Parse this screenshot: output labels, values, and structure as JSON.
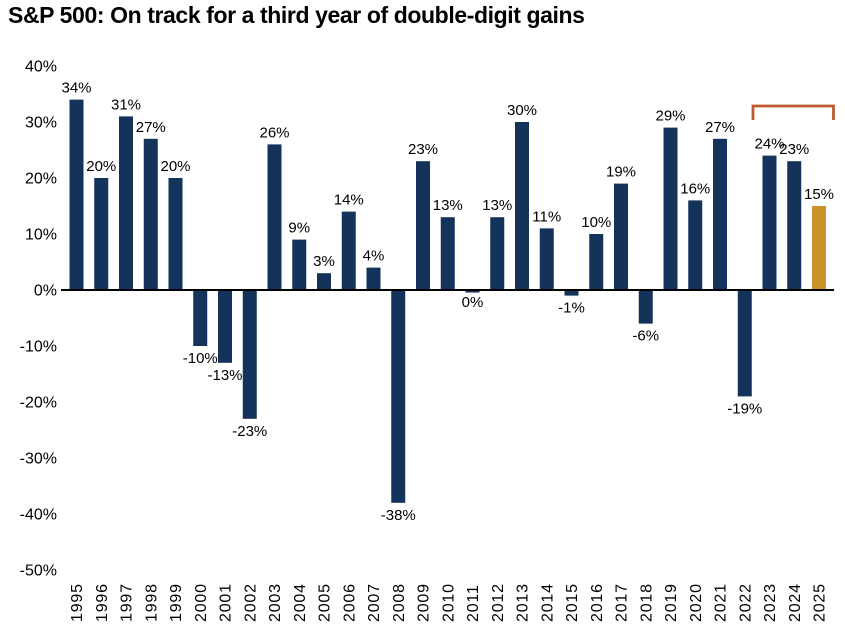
{
  "title": "S&P 500: On track for a third year of double-digit gains",
  "chart_data": {
    "type": "bar",
    "title": "S&P 500: On track for a third year of double-digit gains",
    "categories": [
      "1995",
      "1996",
      "1997",
      "1998",
      "1999",
      "2000",
      "2001",
      "2002",
      "2003",
      "2004",
      "2005",
      "2006",
      "2007",
      "2008",
      "2009",
      "2010",
      "2011",
      "2012",
      "2013",
      "2014",
      "2015",
      "2016",
      "2017",
      "2018",
      "2019",
      "2020",
      "2021",
      "2022",
      "2023",
      "2024",
      "2025"
    ],
    "values": [
      34,
      20,
      31,
      27,
      20,
      -10,
      -13,
      -23,
      26,
      9,
      3,
      14,
      4,
      -38,
      23,
      13,
      0,
      13,
      30,
      11,
      -1,
      10,
      19,
      -6,
      29,
      16,
      27,
      -19,
      24,
      23,
      15
    ],
    "bar_labels": [
      "34%",
      "20%",
      "31%",
      "27%",
      "20%",
      "-10%",
      "-13%",
      "-23%",
      "26%",
      "9%",
      "3%",
      "14%",
      "4%",
      "-38%",
      "23%",
      "13%",
      "0%",
      "13%",
      "30%",
      "11%",
      "-1%",
      "10%",
      "19%",
      "-6%",
      "29%",
      "16%",
      "27%",
      "-19%",
      "24%",
      "23%",
      "15%"
    ],
    "y_tick_labels": [
      "40%",
      "30%",
      "20%",
      "10%",
      "0%",
      "-10%",
      "-20%",
      "-30%",
      "-40%",
      "-50%"
    ],
    "y_tick_values": [
      40,
      30,
      20,
      10,
      0,
      -10,
      -20,
      -30,
      -40,
      -50
    ],
    "ylim": [
      -50,
      40
    ],
    "xlabel": "",
    "ylabel": "",
    "grid": false,
    "legend": "none",
    "highlight_category": "2025",
    "bracket": {
      "from": "2023",
      "to": "2025"
    },
    "colors": {
      "bar": "#13335B",
      "highlight_bar": "#C8932C",
      "bracket": "#BE5A2E",
      "axis": "#000000",
      "text": "#000000",
      "background": "#FFFFFF"
    }
  }
}
